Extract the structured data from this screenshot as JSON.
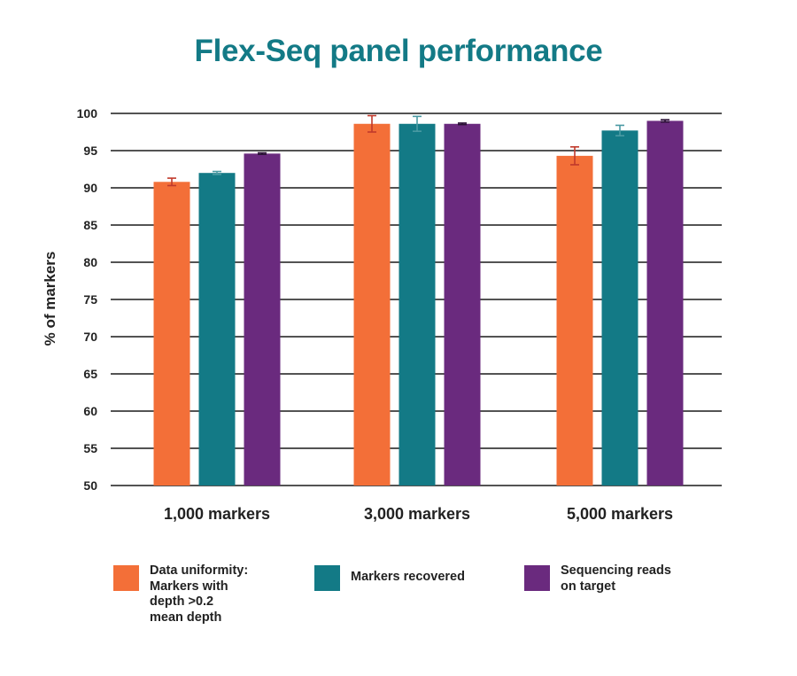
{
  "chart_data": {
    "type": "bar",
    "title": "Flex-Seq panel performance",
    "ylabel": "% of markers",
    "xlabel": "",
    "ylim": [
      50,
      100
    ],
    "yticks": [
      50,
      55,
      60,
      65,
      70,
      75,
      80,
      85,
      90,
      95,
      100
    ],
    "ytick_labels": [
      "50",
      "55",
      "60",
      "65",
      "70",
      "75",
      "80",
      "85",
      "90",
      "95",
      "100"
    ],
    "grid": "horizontal",
    "legend_position": "bottom",
    "categories": [
      "1,000 markers",
      "3,000 markers",
      "5,000 markers"
    ],
    "series": [
      {
        "name": "Data uniformity:\nMarkers with\ndepth >0.2\nmean depth",
        "color": "#F36F38",
        "error_color": "#C0392B",
        "values": [
          90.8,
          98.6,
          94.3
        ],
        "errors": [
          0.5,
          1.1,
          1.2
        ]
      },
      {
        "name": "Markers recovered",
        "color": "#137A86",
        "error_color": "#4A9AA3",
        "values": [
          92.0,
          98.6,
          97.7
        ],
        "errors": [
          0.2,
          1.0,
          0.7
        ]
      },
      {
        "name": "Sequencing reads\non target",
        "color": "#6A2A7E",
        "error_color": "#2A1035",
        "values": [
          94.6,
          98.6,
          99.0
        ],
        "errors": [
          0.1,
          0.1,
          0.15
        ]
      }
    ]
  }
}
